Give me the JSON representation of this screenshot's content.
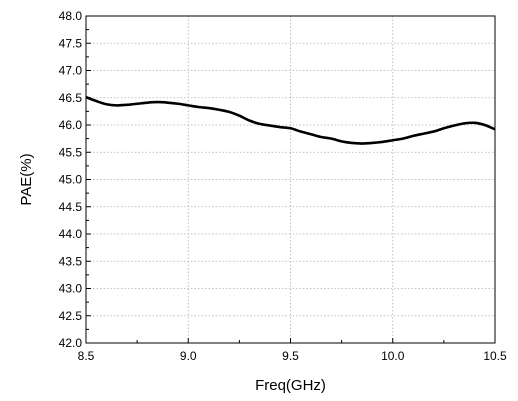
{
  "chart_data": {
    "type": "line",
    "title": "",
    "xlabel": "Freq(GHz)",
    "ylabel": "PAE(%)",
    "xlim": [
      8.5,
      10.5
    ],
    "ylim": [
      42.0,
      48.0
    ],
    "x_ticks": [
      "8.5",
      "9.0",
      "9.5",
      "10.0",
      "10.5"
    ],
    "y_ticks": [
      "42.0",
      "42.5",
      "43.0",
      "43.5",
      "44.0",
      "44.5",
      "45.0",
      "45.5",
      "46.0",
      "46.5",
      "47.0",
      "47.5",
      "48.0"
    ],
    "grid": true,
    "legend": "none",
    "series": [
      {
        "color": "#000000",
        "x": [
          8.5,
          8.55,
          8.6,
          8.65,
          8.7,
          8.75,
          8.8,
          8.85,
          8.9,
          8.95,
          9.0,
          9.05,
          9.1,
          9.15,
          9.2,
          9.25,
          9.3,
          9.35,
          9.4,
          9.45,
          9.5,
          9.55,
          9.6,
          9.65,
          9.7,
          9.75,
          9.8,
          9.85,
          9.9,
          9.95,
          10.0,
          10.05,
          10.1,
          10.15,
          10.2,
          10.25,
          10.3,
          10.35,
          10.4,
          10.45,
          10.5
        ],
        "y": [
          46.51,
          46.44,
          46.38,
          46.36,
          46.37,
          46.39,
          46.41,
          46.42,
          46.41,
          46.39,
          46.36,
          46.33,
          46.31,
          46.28,
          46.24,
          46.17,
          46.08,
          46.02,
          45.99,
          45.96,
          45.94,
          45.88,
          45.83,
          45.78,
          45.75,
          45.7,
          45.67,
          45.66,
          45.67,
          45.69,
          45.72,
          45.75,
          45.8,
          45.84,
          45.88,
          45.94,
          45.99,
          46.03,
          46.04,
          46.0,
          45.92
        ]
      }
    ]
  }
}
